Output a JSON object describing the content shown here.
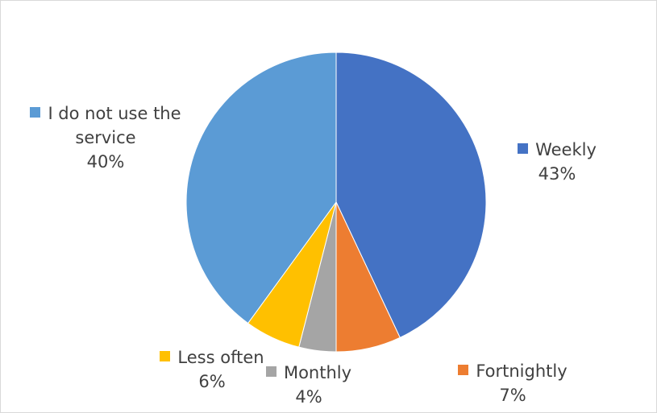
{
  "chart_data": {
    "type": "pie",
    "categories": [
      "Weekly",
      "Fortnightly",
      "Monthly",
      "Less often",
      "I do not use the service"
    ],
    "values": [
      43,
      7,
      4,
      6,
      40
    ],
    "value_labels": [
      "43%",
      "7%",
      "4%",
      "6%",
      "40%"
    ],
    "colors": [
      "#4472c4",
      "#ed7d31",
      "#a5a5a5",
      "#ffc000",
      "#5b9bd5"
    ]
  }
}
